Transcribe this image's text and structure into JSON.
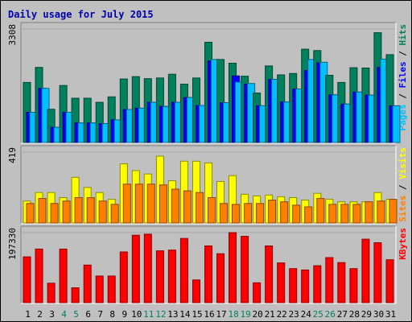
{
  "chart_data": {
    "type": "bar",
    "title": "Daily usage for July 2015",
    "days": [
      "1",
      "2",
      "3",
      "4",
      "5",
      "6",
      "7",
      "8",
      "9",
      "10",
      "11",
      "12",
      "13",
      "14",
      "15",
      "16",
      "17",
      "18",
      "19",
      "20",
      "21",
      "22",
      "23",
      "24",
      "25",
      "26",
      "27",
      "28",
      "29",
      "30",
      "31"
    ],
    "weekend_days": [
      "4",
      "5",
      "11",
      "12",
      "18",
      "19",
      "25",
      "26"
    ],
    "panels": [
      {
        "name": "hits-files-pages",
        "ymax_label": "3308",
        "ymax": 3308,
        "legend": [
          {
            "text": "Pages",
            "color": "#00c0ff"
          },
          {
            "text": " / ",
            "color": "#000000"
          },
          {
            "text": "Files",
            "color": "#0000ff"
          },
          {
            "text": " / ",
            "color": "#000000"
          },
          {
            "text": "Hits",
            "color": "#00805c"
          }
        ],
        "series": [
          {
            "name": "Hits",
            "color": "#00805c",
            "values": [
              1750,
              2190,
              970,
              1660,
              1290,
              1290,
              1170,
              1330,
              1850,
              1920,
              1860,
              1880,
              1990,
              1700,
              1880,
              2920,
              2420,
              2310,
              1930,
              1440,
              2230,
              1970,
              2010,
              2720,
              2680,
              1960,
              1750,
              2180,
              2170,
              3200,
              2560
            ]
          },
          {
            "name": "Files",
            "color": "#0000ff",
            "values": [
              880,
              1580,
              440,
              880,
              570,
              570,
              550,
              660,
              960,
              1000,
              1170,
              1050,
              1170,
              1310,
              1080,
              2380,
              1160,
              1940,
              1700,
              1070,
              1840,
              1180,
              1560,
              2100,
              2320,
              1390,
              1120,
              1470,
              1380,
              2190,
              1070
            ]
          },
          {
            "name": "Pages",
            "color": "#00c0ff",
            "values": [
              880,
              1580,
              440,
              880,
              570,
              570,
              550,
              660,
              960,
              1000,
              1170,
              1050,
              1170,
              1310,
              1080,
              2420,
              1160,
              1760,
              1720,
              1070,
              1840,
              1180,
              1560,
              2420,
              2340,
              1390,
              1120,
              1470,
              1380,
              2430,
              1070
            ]
          }
        ]
      },
      {
        "name": "visits-sites",
        "ymax_label": "419",
        "ymax": 419,
        "legend": [
          {
            "text": "Sites",
            "color": "#ff8000"
          },
          {
            "text": " / ",
            "color": "#000000"
          },
          {
            "text": "Visits",
            "color": "#ffff00"
          }
        ],
        "series": [
          {
            "name": "Visits",
            "color": "#ffff00",
            "values": [
              130,
              180,
              180,
              150,
              270,
              210,
              180,
              140,
              350,
              310,
              290,
              395,
              250,
              365,
              365,
              355,
              245,
              280,
              170,
              160,
              165,
              155,
              150,
              135,
              175,
              140,
              125,
              125,
              125,
              180,
              140
            ]
          },
          {
            "name": "Sites",
            "color": "#ff8000",
            "values": [
              115,
              145,
              115,
              130,
              150,
              150,
              130,
              110,
              230,
              230,
              230,
              225,
              200,
              190,
              180,
              150,
              115,
              110,
              115,
              115,
              135,
              125,
              105,
              95,
              145,
              110,
              110,
              110,
              125,
              130,
              140
            ]
          }
        ]
      },
      {
        "name": "kbytes",
        "ymax_label": "197330",
        "ymax": 197330,
        "legend": [
          {
            "text": "KBytes",
            "color": "#ff0000"
          }
        ],
        "series": [
          {
            "name": "KBytes",
            "color": "#ff0000",
            "values": [
              129000,
              151000,
              55000,
              151000,
              42000,
              106000,
              75000,
              75000,
              143000,
              190000,
              193000,
              146000,
              148000,
              181000,
              64000,
              160000,
              138000,
              197330,
              187000,
              56000,
              160000,
              112000,
              96000,
              92000,
              104000,
              127000,
              113000,
              96000,
              179000,
              169000,
              121000
            ]
          }
        ]
      }
    ]
  }
}
